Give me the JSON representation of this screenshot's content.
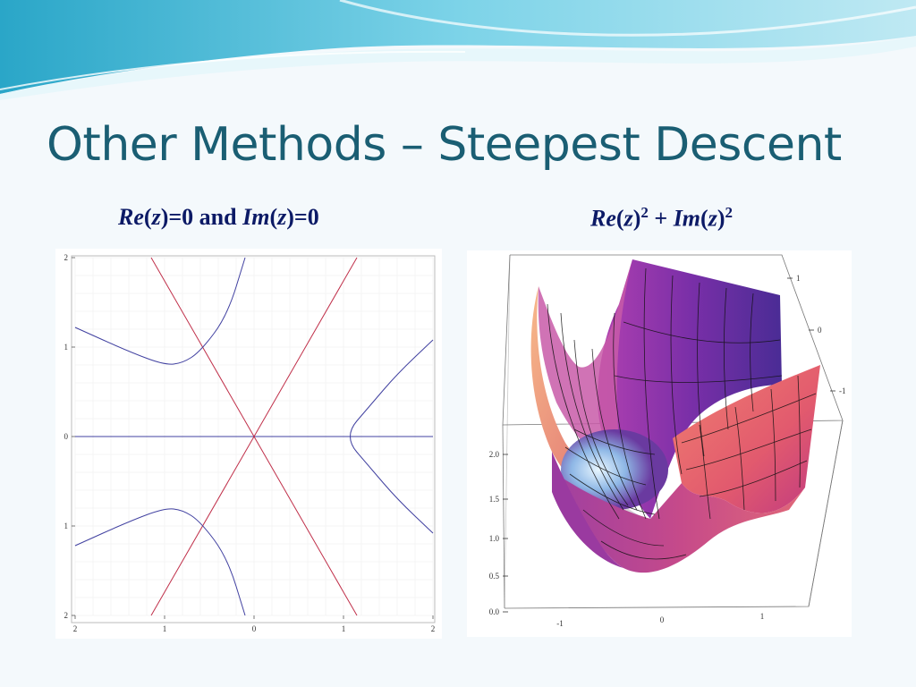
{
  "slide": {
    "title": "Other Methods – Steepest Descent"
  },
  "subheadings": {
    "left": {
      "a": "Re",
      "b": "(",
      "c": "z",
      "d": ")=0 and ",
      "e": "Im",
      "f": "(",
      "g": "z",
      "h": ")=0"
    },
    "right": {
      "a": "Re",
      "b": "(",
      "c": "z",
      "d": ")",
      "e": "2",
      "f": " + ",
      "g": "Im",
      "h": "(",
      "i": "z",
      "j": ")",
      "k": "2"
    }
  },
  "chart_data": [
    {
      "type": "line",
      "title": "",
      "xlim": [
        -2,
        2
      ],
      "ylim": [
        -2,
        2
      ],
      "grid": true,
      "x_ticks": [
        "2",
        "1",
        "0",
        "1",
        "2"
      ],
      "y_ticks": [
        "2",
        "1",
        "0",
        "1",
        "2"
      ],
      "series_colors": {
        "real_zero": "#c0304a",
        "imag_zero": "#4040a0"
      },
      "series": [
        {
          "points": [
            [
              -2,
              0
            ],
            [
              2,
              0
            ]
          ]
        },
        {
          "points": [
            [
              -1.15,
              2
            ],
            [
              1.15,
              -2
            ]
          ]
        },
        {
          "points": [
            [
              -1.15,
              -2
            ],
            [
              1.15,
              2
            ]
          ]
        },
        {
          "points": [
            [
              -2,
              1.22
            ],
            [
              -1.4,
              0.95
            ],
            [
              -1.0,
              0.8
            ],
            [
              -0.8,
              0.82
            ],
            [
              -0.6,
              0.95
            ],
            [
              -0.3,
              1.35
            ],
            [
              -0.1,
              2.0
            ]
          ]
        },
        {
          "points": [
            [
              -2,
              -1.22
            ],
            [
              -1.4,
              -0.95
            ],
            [
              -1.0,
              -0.8
            ],
            [
              -0.8,
              -0.82
            ],
            [
              -0.6,
              -0.95
            ],
            [
              -0.3,
              -1.35
            ],
            [
              -0.1,
              -2.0
            ]
          ]
        },
        {
          "points": [
            [
              2,
              1.08
            ],
            [
              1.6,
              0.7
            ],
            [
              1.3,
              0.35
            ],
            [
              1.0,
              0.0
            ],
            [
              1.3,
              -0.35
            ],
            [
              1.6,
              -0.7
            ],
            [
              2,
              -1.08
            ]
          ]
        }
      ]
    },
    {
      "type": "surface3d",
      "title": "",
      "z_ticks": [
        "2.0",
        "1.5",
        "1.0",
        "0.5",
        "0.0"
      ],
      "x_ticks": [
        "-1",
        "0",
        "1"
      ],
      "y_ticks": [
        "1",
        "0",
        "-1"
      ],
      "colormap": [
        "#f7b98a",
        "#e8657a",
        "#a23fa0",
        "#5b2a9a",
        "#c7e8f8"
      ]
    }
  ]
}
